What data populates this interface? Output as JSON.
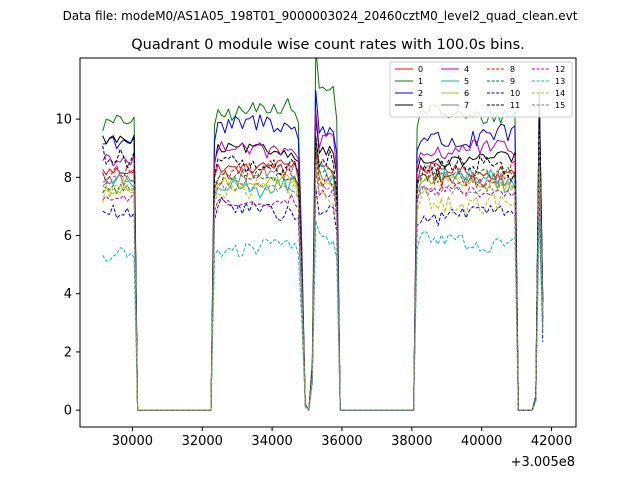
{
  "figure": {
    "suptitle": "Data file: modeM0/AS1A05_198T01_9000003024_20460cztM0_level2_quad_clean.evt"
  },
  "chart_data": {
    "type": "line",
    "title": "Quadrant 0 module wise count rates with 100.0s bins.",
    "xlabel": "",
    "ylabel": "",
    "x_offset_label": "+3.005e8",
    "xlim": [
      28500,
      42700
    ],
    "ylim": [
      -0.58,
      12.1
    ],
    "xticks": [
      30000,
      32000,
      34000,
      36000,
      38000,
      40000,
      42000
    ],
    "xtick_labels": [
      "30000",
      "32000",
      "34000",
      "36000",
      "38000",
      "40000",
      "42000"
    ],
    "yticks": [
      0,
      2,
      4,
      6,
      8,
      10
    ],
    "ytick_labels": [
      "0",
      "2",
      "4",
      "6",
      "8",
      "10"
    ],
    "legend_position": "top-right",
    "legend_columns": 4,
    "x_range_note": "Bin centres run 29150 to 41750 in steps of 100 s (127 bins)",
    "series": [
      {
        "name": "0",
        "color": "#ff0000",
        "dash": "solid",
        "levels": [
          8.3,
          8.4,
          8.3,
          8.2,
          8.3
        ]
      },
      {
        "name": "1",
        "color": "#008000",
        "dash": "solid",
        "levels": [
          9.9,
          10.3,
          11.1,
          10.2,
          10.0
        ]
      },
      {
        "name": "2",
        "color": "#0000ff",
        "dash": "solid",
        "levels": [
          9.1,
          9.7,
          9.8,
          9.4,
          9.5
        ]
      },
      {
        "name": "3",
        "color": "#000000",
        "dash": "solid",
        "levels": [
          9.2,
          8.9,
          9.0,
          8.6,
          8.8
        ]
      },
      {
        "name": "4",
        "color": "#bf00bf",
        "dash": "solid",
        "levels": [
          8.6,
          9.0,
          9.2,
          8.9,
          8.7
        ]
      },
      {
        "name": "5",
        "color": "#00bfbf",
        "dash": "solid",
        "levels": [
          8.1,
          7.8,
          7.9,
          7.9,
          8.0
        ]
      },
      {
        "name": "6",
        "color": "#bfbf00",
        "dash": "solid",
        "levels": [
          7.6,
          7.9,
          7.8,
          7.8,
          7.9
        ]
      },
      {
        "name": "7",
        "color": "#7f7f7f",
        "dash": "solid",
        "levels": [
          7.9,
          8.2,
          8.1,
          8.0,
          8.1
        ]
      },
      {
        "name": "8",
        "color": "#ff0000",
        "dash": "dashed",
        "levels": [
          8.0,
          8.1,
          8.0,
          8.1,
          8.2
        ]
      },
      {
        "name": "9",
        "color": "#008000",
        "dash": "dashed",
        "levels": [
          7.5,
          8.0,
          8.3,
          8.1,
          8.0
        ]
      },
      {
        "name": "10",
        "color": "#0000ff",
        "dash": "dashed",
        "levels": [
          6.7,
          6.9,
          6.8,
          6.7,
          6.7
        ]
      },
      {
        "name": "11",
        "color": "#000000",
        "dash": "dashed",
        "levels": [
          8.8,
          8.5,
          8.4,
          8.3,
          8.4
        ]
      },
      {
        "name": "12",
        "color": "#bf00bf",
        "dash": "dashed",
        "levels": [
          7.4,
          7.2,
          7.4,
          7.5,
          7.6
        ]
      },
      {
        "name": "13",
        "color": "#00bfbf",
        "dash": "dashed",
        "levels": [
          5.4,
          5.6,
          5.8,
          5.8,
          5.9
        ]
      },
      {
        "name": "14",
        "color": "#bfbf00",
        "dash": "dashed",
        "levels": [
          7.5,
          7.5,
          7.4,
          7.2,
          7.3
        ]
      },
      {
        "name": "15",
        "color": "#7f7f7f",
        "dash": "dashed",
        "levels": [
          7.8,
          7.6,
          7.7,
          7.6,
          7.8
        ]
      }
    ]
  }
}
